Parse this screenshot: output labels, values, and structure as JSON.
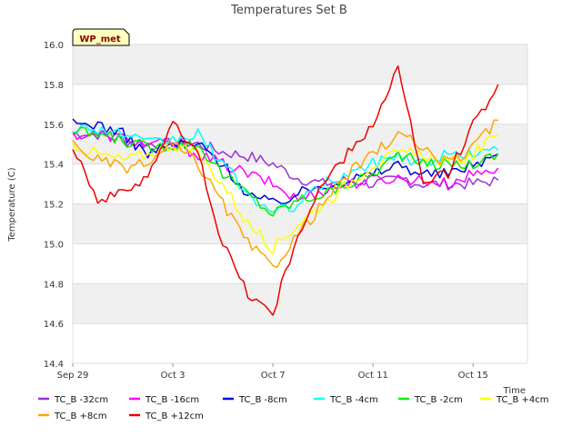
{
  "chart_data": {
    "type": "line",
    "title": "Temperatures Set B",
    "xlabel": "Time",
    "ylabel": "Temperature (C)",
    "ylim": [
      14.4,
      16.0
    ],
    "xlim": [
      "Sep 29",
      "Oct 17 04:00"
    ],
    "x_tick_labels": [
      "Sep 29",
      "Oct 3",
      "Oct 7",
      "Oct 11",
      "Oct 15"
    ],
    "y_tick_labels": [
      "14.4",
      "14.6",
      "14.8",
      "15.0",
      "15.2",
      "15.4",
      "15.6",
      "15.8",
      "16.0"
    ],
    "y_ticks": [
      14.4,
      14.6,
      14.8,
      15.0,
      15.2,
      15.4,
      15.6,
      15.8,
      16.0
    ],
    "grid": true,
    "legend_position": "bottom",
    "badge": "WP_met",
    "x_dates": [
      "Sep 29",
      "Sep 30",
      "Oct 1",
      "Oct 2",
      "Oct 3",
      "Oct 4",
      "Oct 5",
      "Oct 6",
      "Oct 7",
      "Oct 8",
      "Oct 9",
      "Oct 10",
      "Oct 11",
      "Oct 12",
      "Oct 13",
      "Oct 14",
      "Oct 15",
      "Oct 16"
    ],
    "series": [
      {
        "name": "TC_B -32cm",
        "color": "#9b30d9",
        "values": [
          15.55,
          15.55,
          15.52,
          15.5,
          15.5,
          15.5,
          15.46,
          15.44,
          15.4,
          15.33,
          15.3,
          15.32,
          15.3,
          15.32,
          15.3,
          15.3,
          15.3,
          15.32
        ]
      },
      {
        "name": "TC_B -16cm",
        "color": "#ff00ff",
        "values": [
          15.55,
          15.55,
          15.53,
          15.5,
          15.5,
          15.45,
          15.4,
          15.35,
          15.3,
          15.22,
          15.27,
          15.3,
          15.32,
          15.33,
          15.32,
          15.3,
          15.35,
          15.38
        ]
      },
      {
        "name": "TC_B -8cm",
        "color": "#0000dd",
        "values": [
          15.6,
          15.6,
          15.55,
          15.45,
          15.5,
          15.5,
          15.4,
          15.25,
          15.2,
          15.25,
          15.3,
          15.32,
          15.35,
          15.4,
          15.35,
          15.35,
          15.4,
          15.45
        ]
      },
      {
        "name": "TC_B -4cm",
        "color": "#00ffff",
        "values": [
          15.58,
          15.58,
          15.55,
          15.5,
          15.52,
          15.55,
          15.4,
          15.25,
          15.15,
          15.2,
          15.3,
          15.35,
          15.4,
          15.45,
          15.4,
          15.45,
          15.45,
          15.47
        ]
      },
      {
        "name": "TC_B -2cm",
        "color": "#00ee00",
        "values": [
          15.56,
          15.55,
          15.52,
          15.48,
          15.5,
          15.5,
          15.35,
          15.25,
          15.15,
          15.22,
          15.25,
          15.3,
          15.35,
          15.45,
          15.4,
          15.4,
          15.4,
          15.45
        ]
      },
      {
        "name": "TC_B +4cm",
        "color": "#ffff00",
        "values": [
          15.5,
          15.45,
          15.42,
          15.45,
          15.5,
          15.45,
          15.3,
          15.1,
          14.98,
          15.1,
          15.2,
          15.3,
          15.4,
          15.45,
          15.45,
          15.4,
          15.45,
          15.55
        ]
      },
      {
        "name": "TC_B +8cm",
        "color": "#ffa500",
        "values": [
          15.5,
          15.42,
          15.38,
          15.4,
          15.5,
          15.4,
          15.2,
          15.0,
          14.88,
          15.05,
          15.2,
          15.35,
          15.45,
          15.55,
          15.48,
          15.4,
          15.48,
          15.62
        ]
      },
      {
        "name": "TC_B +12cm",
        "color": "#ee0000",
        "values": [
          15.5,
          15.22,
          15.25,
          15.35,
          15.6,
          15.45,
          15.0,
          14.75,
          14.65,
          15.05,
          15.3,
          15.45,
          15.6,
          15.88,
          15.3,
          15.35,
          15.6,
          15.8
        ]
      }
    ]
  }
}
